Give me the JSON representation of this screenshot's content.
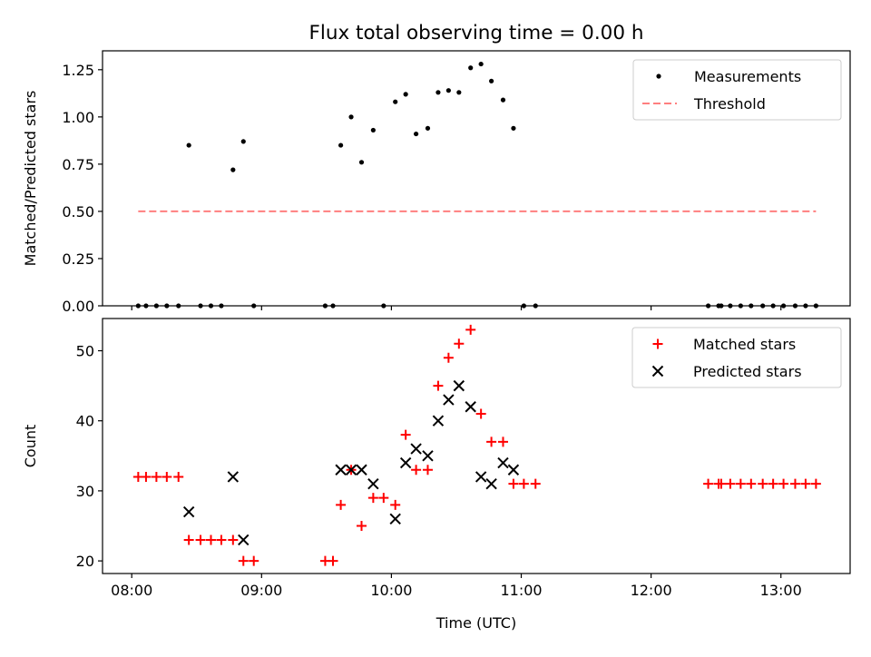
{
  "title": "Flux total observing time = 0.00 h",
  "chart_data": [
    {
      "type": "scatter",
      "ylabel": "Matched/Predicted stars",
      "xlabel": "",
      "xlim": [
        7.775,
        13.533
      ],
      "ylim": [
        0.0,
        1.35
      ],
      "xticks": [
        8,
        9,
        10,
        11,
        12,
        13
      ],
      "xtick_labels": [
        "08:00",
        "09:00",
        "10:00",
        "11:00",
        "12:00",
        "13:00"
      ],
      "show_x_tick_labels": false,
      "yticks": [
        0.0,
        0.25,
        0.5,
        0.75,
        1.0,
        1.25
      ],
      "ytick_labels": [
        "0.00",
        "0.25",
        "0.50",
        "0.75",
        "1.00",
        "1.25"
      ],
      "grid": false,
      "legend_position": "top-right",
      "legend": [
        {
          "label": "Measurements",
          "marker": "dot",
          "color": "#000000"
        },
        {
          "label": "Threshold",
          "marker": "dashed-line",
          "color": "#ff7f7f"
        }
      ],
      "series": [
        {
          "name": "Measurements",
          "marker": "dot",
          "color": "#000000",
          "x": [
            8.05,
            8.11,
            8.19,
            8.27,
            8.36,
            8.44,
            8.53,
            8.61,
            8.69,
            8.78,
            8.86,
            8.94,
            9.49,
            9.55,
            9.61,
            9.69,
            9.77,
            9.86,
            9.94,
            10.03,
            10.11,
            10.19,
            10.28,
            10.36,
            10.44,
            10.52,
            10.61,
            10.69,
            10.77,
            10.86,
            10.94,
            11.02,
            11.11,
            12.44,
            12.52,
            12.54,
            12.61,
            12.69,
            12.77,
            12.86,
            12.94,
            13.02,
            13.11,
            13.19,
            13.27
          ],
          "y": [
            0,
            0,
            0,
            0,
            0,
            0.85,
            0,
            0,
            0,
            0.72,
            0.87,
            0,
            0,
            0,
            0.85,
            1.0,
            0.76,
            0.93,
            0,
            1.08,
            1.12,
            0.91,
            0.94,
            1.13,
            1.14,
            1.13,
            1.26,
            1.28,
            1.19,
            1.09,
            0.94,
            0,
            0,
            0,
            0,
            0,
            0,
            0,
            0,
            0,
            0,
            0,
            0,
            0,
            0
          ]
        },
        {
          "name": "Threshold",
          "marker": "dashed-line",
          "color": "#ff7f7f",
          "x": [
            8.05,
            13.27
          ],
          "y": [
            0.5,
            0.5
          ]
        }
      ]
    },
    {
      "type": "scatter",
      "ylabel": "Count",
      "xlabel": "Time (UTC)",
      "xlim": [
        7.775,
        13.533
      ],
      "ylim": [
        18.2,
        54.6
      ],
      "xticks": [
        8,
        9,
        10,
        11,
        12,
        13
      ],
      "xtick_labels": [
        "08:00",
        "09:00",
        "10:00",
        "11:00",
        "12:00",
        "13:00"
      ],
      "show_x_tick_labels": true,
      "yticks": [
        20,
        30,
        40,
        50
      ],
      "ytick_labels": [
        "20",
        "30",
        "40",
        "50"
      ],
      "grid": false,
      "legend_position": "top-right",
      "legend": [
        {
          "label": "Matched stars",
          "marker": "plus",
          "color": "#ff0000"
        },
        {
          "label": "Predicted stars",
          "marker": "x",
          "color": "#000000"
        }
      ],
      "series": [
        {
          "name": "Matched stars",
          "marker": "plus",
          "color": "#ff0000",
          "x": [
            8.05,
            8.11,
            8.19,
            8.27,
            8.36,
            8.44,
            8.53,
            8.61,
            8.69,
            8.78,
            8.86,
            8.94,
            9.49,
            9.55,
            9.61,
            9.69,
            9.77,
            9.86,
            9.94,
            10.03,
            10.11,
            10.19,
            10.28,
            10.36,
            10.44,
            10.52,
            10.61,
            10.69,
            10.77,
            10.86,
            10.94,
            11.02,
            11.11,
            12.44,
            12.52,
            12.54,
            12.61,
            12.69,
            12.77,
            12.86,
            12.94,
            13.02,
            13.11,
            13.19,
            13.27
          ],
          "y": [
            32,
            32,
            32,
            32,
            32,
            23,
            23,
            23,
            23,
            23,
            20,
            20,
            20,
            20,
            28,
            33,
            25,
            29,
            29,
            28,
            38,
            33,
            33,
            45,
            49,
            51,
            53,
            41,
            37,
            37,
            31,
            31,
            31,
            31,
            31,
            31,
            31,
            31,
            31,
            31,
            31,
            31,
            31,
            31,
            31
          ]
        },
        {
          "name": "Predicted stars",
          "marker": "x",
          "color": "#000000",
          "x": [
            8.44,
            8.78,
            8.86,
            9.61,
            9.69,
            9.77,
            9.86,
            10.03,
            10.11,
            10.19,
            10.28,
            10.36,
            10.44,
            10.52,
            10.61,
            10.69,
            10.77,
            10.86,
            10.94
          ],
          "y": [
            27,
            32,
            23,
            33,
            33,
            33,
            31,
            26,
            34,
            36,
            35,
            40,
            43,
            45,
            42,
            32,
            31,
            34,
            33
          ]
        }
      ]
    }
  ]
}
